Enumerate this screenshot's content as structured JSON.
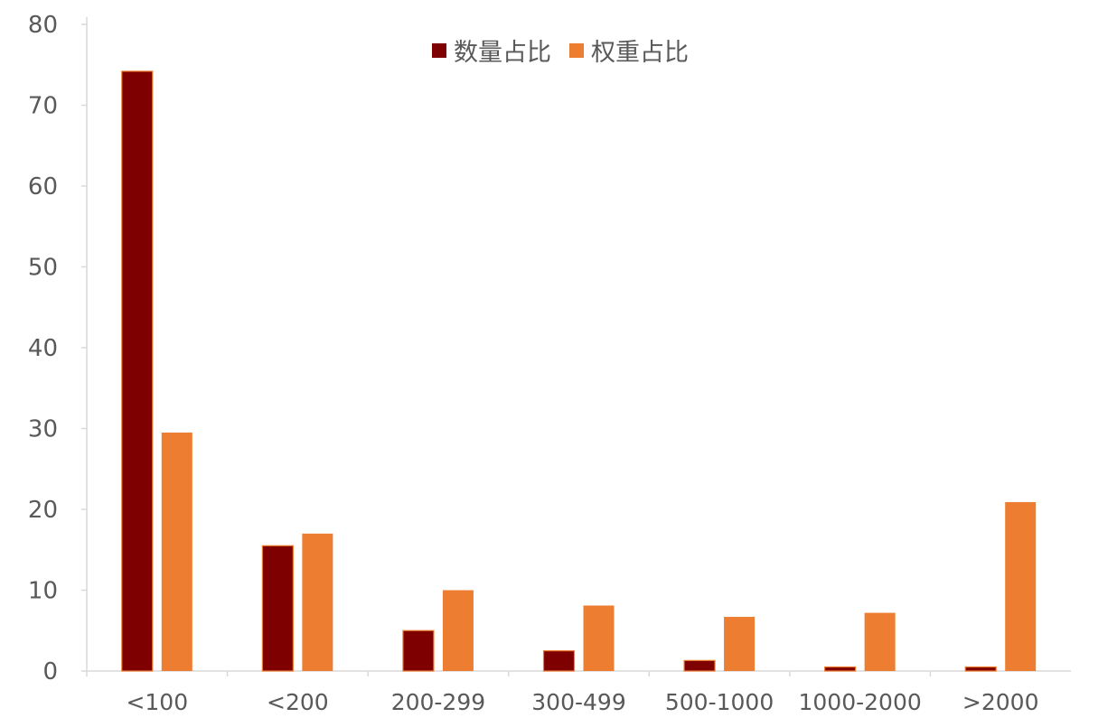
{
  "chart_data": {
    "type": "bar",
    "categories": [
      "<100",
      "<200",
      "200-299",
      "300-499",
      "500-1000",
      "1000-2000",
      ">2000"
    ],
    "series": [
      {
        "name": "数量占比",
        "color": "#7f0000",
        "values": [
          74.2,
          15.5,
          5.0,
          2.5,
          1.3,
          0.5,
          0.5
        ]
      },
      {
        "name": "权重占比",
        "color": "#ed7d31",
        "values": [
          29.5,
          17.0,
          10.0,
          8.1,
          6.7,
          7.2,
          20.9
        ]
      }
    ],
    "ylim": [
      0,
      80
    ],
    "yticks": [
      0,
      10,
      20,
      30,
      40,
      50,
      60,
      70,
      80
    ],
    "xlabel": "",
    "ylabel": "",
    "title": "",
    "grid": false,
    "legend_position": "top-center"
  }
}
